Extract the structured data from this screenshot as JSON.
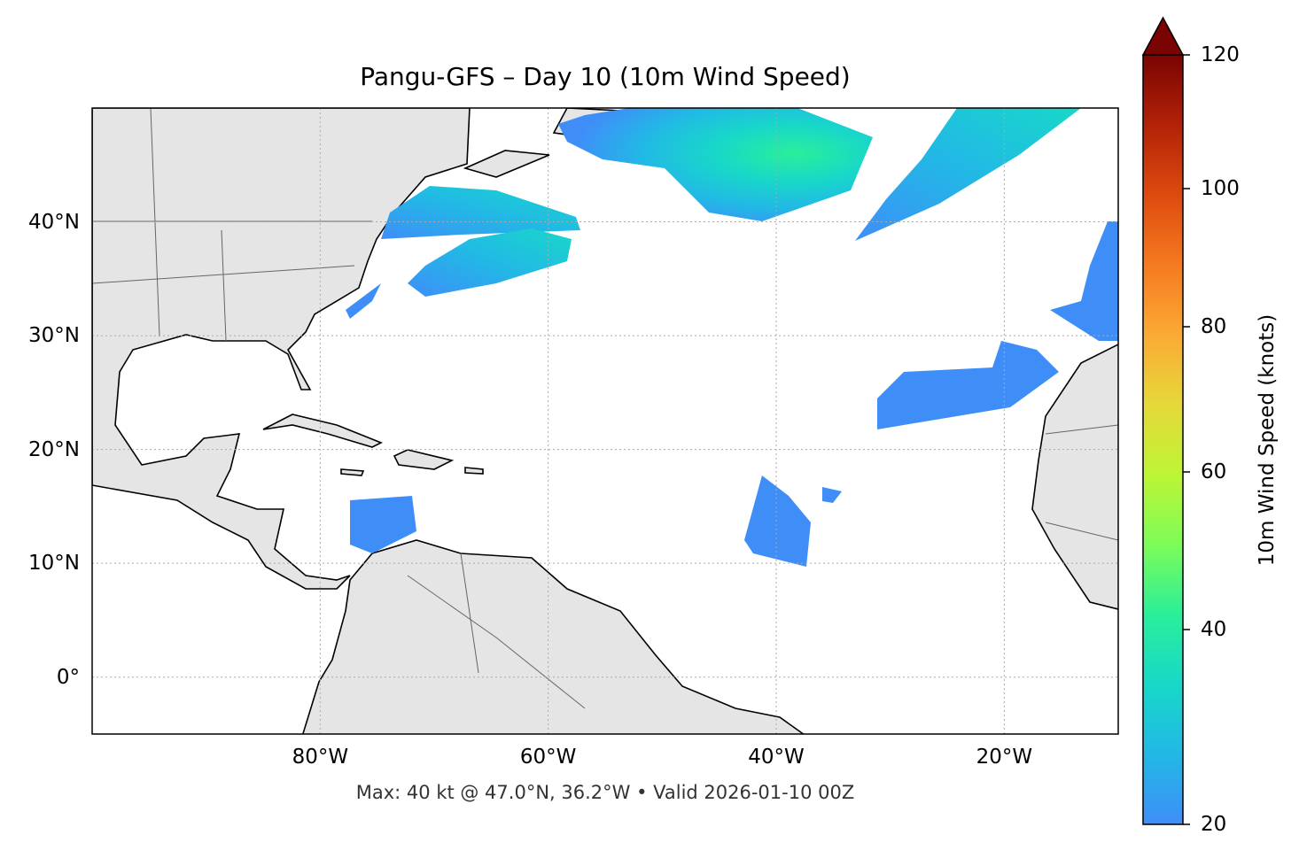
{
  "title": "Pangu-GFS – Day 10 (10m Wind Speed)",
  "footer": "Max: 40 kt @ 47.0°N, 36.2°W • Valid 2026-01-10 00Z",
  "map": {
    "projection": "PlateCarree",
    "extent": {
      "lon": [
        -100,
        -10
      ],
      "lat": [
        -5,
        50
      ]
    },
    "gridlines": true,
    "x_ticks": [
      {
        "value": -80,
        "label": "80°W"
      },
      {
        "value": -60,
        "label": "60°W"
      },
      {
        "value": -40,
        "label": "40°W"
      },
      {
        "value": -20,
        "label": "20°W"
      }
    ],
    "y_ticks": [
      {
        "value": 0,
        "label": "0°"
      },
      {
        "value": 10,
        "label": "10°N"
      },
      {
        "value": 20,
        "label": "20°N"
      },
      {
        "value": 30,
        "label": "30°N"
      },
      {
        "value": 40,
        "label": "40°N"
      }
    ],
    "land_color": "#e5e5e5",
    "coast_color": "#000000",
    "border_color": "#666666",
    "max_point": {
      "value_kt": 40,
      "lat": 47.0,
      "lon": -36.2
    }
  },
  "colorbar": {
    "label": "10m Wind Speed (knots)",
    "min": 20,
    "max": 120,
    "extend": "max",
    "ticks": [
      "20",
      "40",
      "60",
      "80",
      "100",
      "120"
    ],
    "colormap": "turbo",
    "colors": [
      "#3f8ef8",
      "#22b8e6",
      "#18d8c8",
      "#2aef9a",
      "#7dfc58",
      "#bdf535",
      "#e6d83a",
      "#fbaa35",
      "#f57a20",
      "#dd4a0f",
      "#b22207",
      "#7a0403"
    ]
  }
}
